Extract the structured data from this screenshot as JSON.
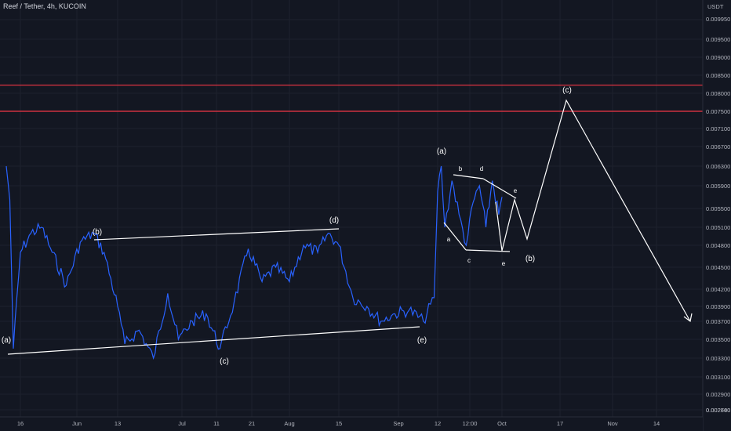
{
  "header": {
    "title": "Reef / Tether, 4h, KUCOIN"
  },
  "chart_data": {
    "type": "line",
    "title": "Reef / Tether, 4h, KUCOIN",
    "y_unit": "USDT",
    "y_ticks": [
      "0.009950",
      "0.009500",
      "0.009000",
      "0.008500",
      "0.008000",
      "0.007500",
      "0.007100",
      "0.006700",
      "0.006300",
      "0.005900",
      "0.005500",
      "0.005100",
      "0.004800",
      "0.004500",
      "0.004200",
      "0.003900",
      "0.003700",
      "0.003500",
      "0.003300",
      "0.003100",
      "0.002900",
      "0.002740",
      "0.002600"
    ],
    "x_ticks": [
      "16",
      "Jun",
      "13",
      "Jul",
      "11",
      "21",
      "Aug",
      "15",
      "Sep",
      "12",
      "12:00",
      "Oct",
      "17",
      "Nov",
      "14"
    ],
    "grid": true,
    "price_series": {
      "name": "",
      "color": "#2962ff",
      "x_note": "approximate dates, 2021",
      "points": [
        [
          "2021-05-12",
          0.0059
        ],
        [
          "2021-05-13",
          0.00525
        ],
        [
          "2021-05-14",
          0.0032
        ],
        [
          "2021-05-16",
          0.0044
        ],
        [
          "2021-05-19",
          0.0047
        ],
        [
          "2021-05-22",
          0.0048
        ],
        [
          "2021-05-25",
          0.0044
        ],
        [
          "2021-05-29",
          0.00395
        ],
        [
          "2021-06-02",
          0.00455
        ],
        [
          "2021-06-06",
          0.0047
        ],
        [
          "2021-06-09",
          0.0044
        ],
        [
          "2021-06-13",
          0.0037
        ],
        [
          "2021-06-15",
          0.00325
        ],
        [
          "2021-06-19",
          0.0034
        ],
        [
          "2021-06-23",
          0.0031
        ],
        [
          "2021-06-27",
          0.00385
        ],
        [
          "2021-06-30",
          0.0033
        ],
        [
          "2021-07-04",
          0.0035
        ],
        [
          "2021-07-08",
          0.0036
        ],
        [
          "2021-07-12",
          0.0032
        ],
        [
          "2021-07-16",
          0.00375
        ],
        [
          "2021-07-20",
          0.00445
        ],
        [
          "2021-07-24",
          0.004
        ],
        [
          "2021-07-28",
          0.0042
        ],
        [
          "2021-08-01",
          0.004
        ],
        [
          "2021-08-05",
          0.0045
        ],
        [
          "2021-08-09",
          0.0044
        ],
        [
          "2021-08-12",
          0.0047
        ],
        [
          "2021-08-15",
          0.0045
        ],
        [
          "2021-08-19",
          0.0038
        ],
        [
          "2021-08-23",
          0.0037
        ],
        [
          "2021-08-27",
          0.0035
        ],
        [
          "2021-08-31",
          0.0036
        ],
        [
          "2021-09-04",
          0.00365
        ],
        [
          "2021-09-08",
          0.0035
        ],
        [
          "2021-09-11",
          0.0038
        ],
        [
          "2021-09-12",
          0.0054
        ],
        [
          "2021-09-13",
          0.0059
        ],
        [
          "2021-09-14",
          0.0048
        ],
        [
          "2021-09-16",
          0.0056
        ],
        [
          "2021-09-18",
          0.005
        ],
        [
          "2021-09-20",
          0.0045
        ],
        [
          "2021-09-22",
          0.0052
        ],
        [
          "2021-09-24",
          0.0055
        ],
        [
          "2021-09-26",
          0.0048
        ],
        [
          "2021-09-28",
          0.0056
        ],
        [
          "2021-09-30",
          0.005
        ],
        [
          "2021-10-01",
          0.0053
        ]
      ]
    },
    "horizontal_levels": [
      {
        "price": 0.00772,
        "color": "#f23645"
      },
      {
        "price": 0.0071,
        "color": "#f23645"
      }
    ],
    "annotations": [
      "(a)",
      "(b)",
      "(c)",
      "(d)",
      "(e)",
      "(a)",
      "(b)",
      "(c)",
      "a",
      "b",
      "c",
      "d",
      "e",
      "e"
    ]
  }
}
